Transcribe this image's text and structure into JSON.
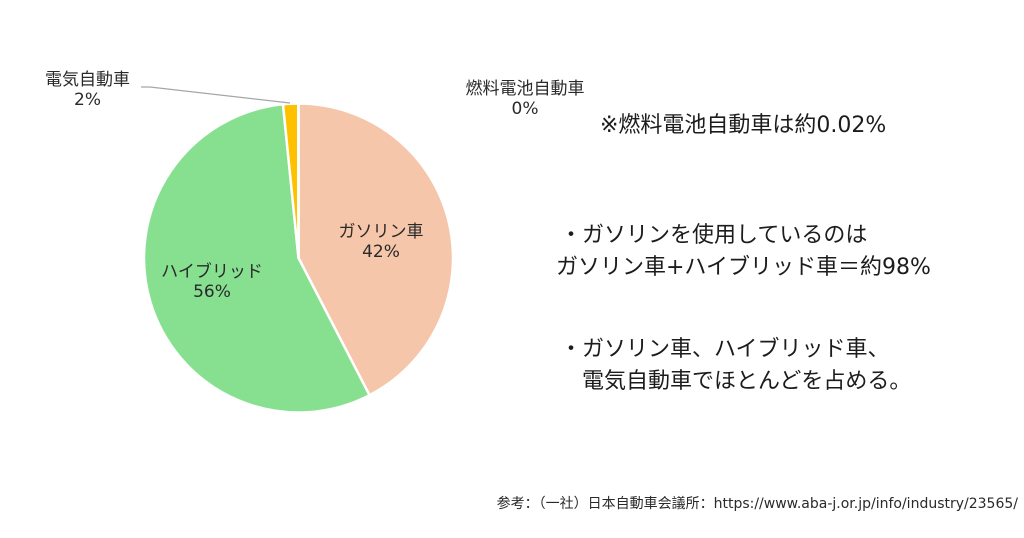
{
  "chart_data": {
    "type": "pie",
    "title": "",
    "categories": [
      "ガソリン車",
      "ハイブリッド",
      "電気自動車",
      "燃料電池自動車"
    ],
    "values": [
      42,
      56,
      2,
      0
    ],
    "value_labels": [
      "42%",
      "56%",
      "2%",
      "0%"
    ],
    "colors": [
      "#F5C6AA",
      "#86E090",
      "#FFC000",
      "#5B9BD5"
    ],
    "start_angle_deg": 0,
    "direction": "clockwise",
    "legend": "none (data labels on slices)"
  },
  "labels": {
    "gasoline": {
      "name": "ガソリン車",
      "pct": "42%"
    },
    "hybrid": {
      "name": "ハイブリッド",
      "pct": "56%"
    },
    "ev": {
      "name": "電気自動車",
      "pct": "2%"
    },
    "fcv": {
      "name": "燃料電池自動車",
      "pct": "0%"
    }
  },
  "notes": {
    "fcv_note": "※燃料電池自動車は約0.02%",
    "bullet1_line1": "・ガソリンを使用しているのは",
    "bullet1_line2": "ガソリン車+ハイブリッド車＝約98%",
    "bullet2_line1": "・ガソリン車、ハイブリッド車、",
    "bullet2_line2": "電気自動車でほとんどを占める。"
  },
  "source": "参考：（一社）日本自動車会議所：https://www.aba-j.or.jp/info/industry/23565/"
}
